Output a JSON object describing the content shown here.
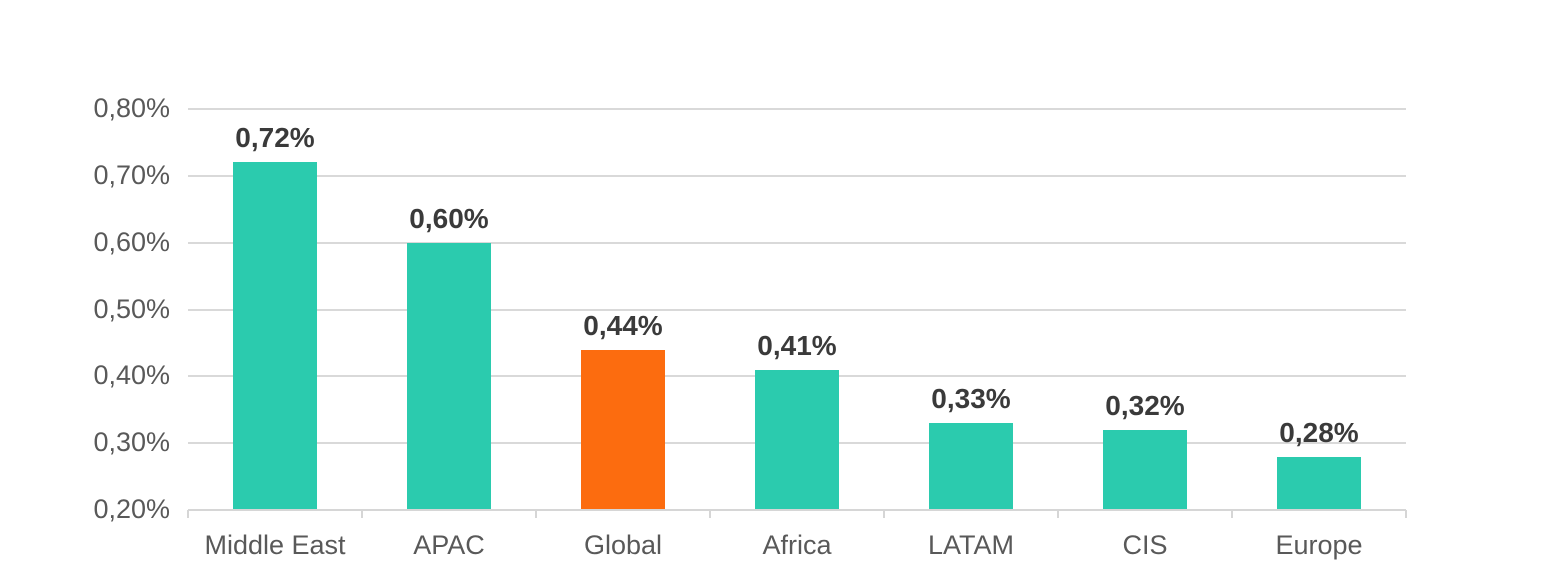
{
  "chart_data": {
    "type": "bar",
    "categories": [
      "Middle East",
      "APAC",
      "Global",
      "Africa",
      "LATAM",
      "CIS",
      "Europe"
    ],
    "values": [
      0.72,
      0.6,
      0.44,
      0.41,
      0.33,
      0.32,
      0.28
    ],
    "value_labels": [
      "0,72%",
      "0,60%",
      "0,44%",
      "0,41%",
      "0,33%",
      "0,32%",
      "0,28%"
    ],
    "highlight_index": 2,
    "y_axis": {
      "min": 0.2,
      "max": 0.8,
      "tick_step": 0.1,
      "tick_values": [
        0.8,
        0.7,
        0.6,
        0.5,
        0.4,
        0.3,
        0.2
      ],
      "tick_labels": [
        "0,80%",
        "0,70%",
        "0,60%",
        "0,50%",
        "0,40%",
        "0,30%",
        "0,20%"
      ]
    },
    "grid": true,
    "legend": "none",
    "title": "",
    "colors": {
      "bar_default": "#2bcbae",
      "bar_highlight": "#fc6c0f",
      "gridline": "#d9d9d9",
      "axis_line": "#d6d6d6",
      "axis_text": "#595959",
      "value_text": "#3a3a3a"
    }
  }
}
